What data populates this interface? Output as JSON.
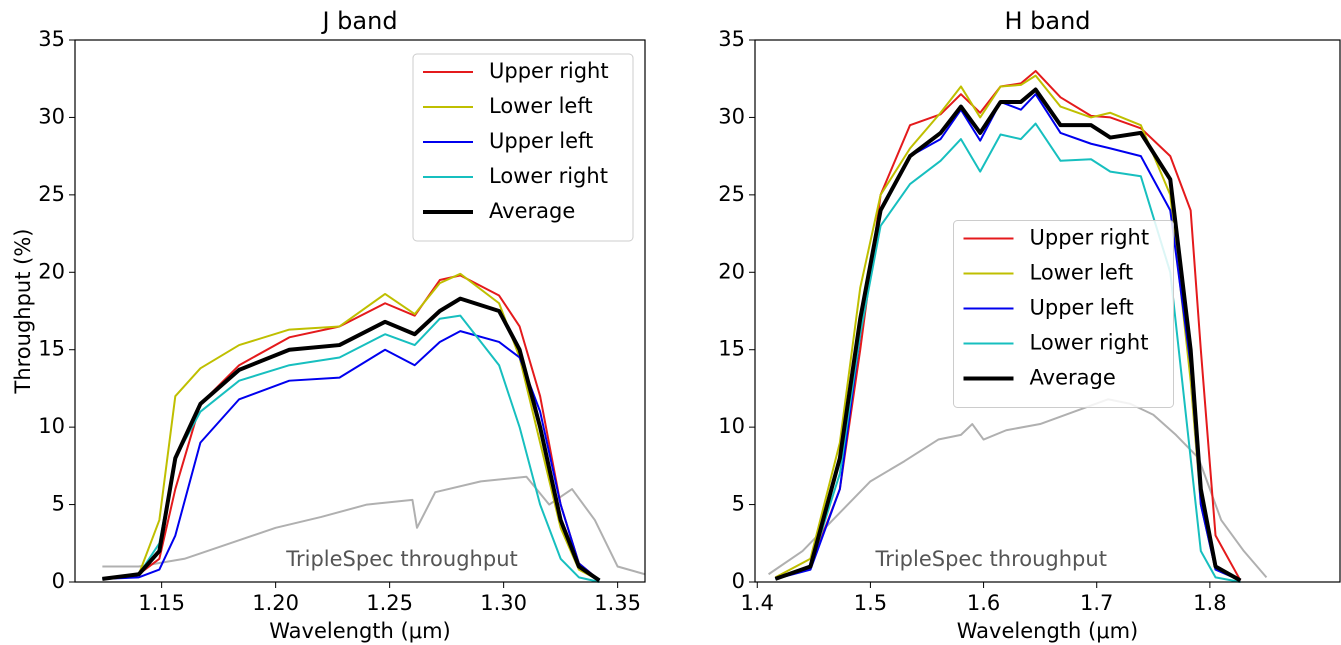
{
  "chart_data": [
    {
      "type": "line",
      "title": "J band",
      "xlabel": "Wavelength (μm)",
      "ylabel": "Throughput (%)",
      "xlim": [
        1.112,
        1.362
      ],
      "ylim": [
        0,
        35
      ],
      "xticks": [
        1.15,
        {
          "value": 1.2,
          "label": "1.20"
        },
        1.25,
        {
          "value": 1.3,
          "label": "1.30"
        },
        1.35
      ],
      "yticks": [
        0,
        5,
        10,
        15,
        20,
        25,
        30,
        35
      ],
      "grid": false,
      "legend": "upper right",
      "x": [
        1.124,
        1.14,
        1.149,
        1.156,
        1.167,
        1.184,
        1.206,
        1.228,
        1.248,
        1.261,
        1.272,
        1.281,
        1.298,
        1.307,
        1.316,
        1.325,
        1.333,
        1.342
      ],
      "series": [
        {
          "name": "Upper right",
          "color": "#e41a1c",
          "width": 2,
          "values": [
            0.2,
            0.5,
            1.5,
            6,
            11.5,
            14,
            15.8,
            16.5,
            18,
            17.2,
            19.5,
            19.8,
            18.5,
            16.5,
            12,
            5,
            1.2,
            0.1
          ]
        },
        {
          "name": "Lower left",
          "color": "#bfbf00",
          "width": 2,
          "values": [
            0.2,
            0.5,
            4,
            12,
            13.8,
            15.3,
            16.3,
            16.5,
            18.6,
            17.3,
            19.3,
            19.9,
            18,
            14.5,
            9,
            3.5,
            0.8,
            0.1
          ]
        },
        {
          "name": "Upper left",
          "color": "#0000ee",
          "width": 2,
          "values": [
            0.2,
            0.3,
            0.8,
            3,
            9,
            11.8,
            13,
            13.2,
            15,
            14,
            15.5,
            16.2,
            15.5,
            14.5,
            11,
            5,
            1.2,
            0.1
          ]
        },
        {
          "name": "Lower right",
          "color": "#17bfbf",
          "width": 2,
          "values": [
            0.2,
            0.5,
            2.5,
            8,
            11,
            13,
            14,
            14.5,
            16,
            15.3,
            17,
            17.2,
            14,
            10,
            5,
            1.5,
            0.3,
            0
          ]
        },
        {
          "name": "Average",
          "color": "#000000",
          "width": 4,
          "values": [
            0.2,
            0.5,
            2,
            8,
            11.5,
            13.7,
            15,
            15.3,
            16.8,
            16,
            17.5,
            18.3,
            17.5,
            15,
            10,
            4,
            1,
            0.1
          ]
        }
      ],
      "reference": {
        "label": "TripleSpec throughput",
        "color": "#b0b0b0",
        "x": [
          1.124,
          1.14,
          1.16,
          1.18,
          1.2,
          1.22,
          1.24,
          1.26,
          1.262,
          1.27,
          1.29,
          1.31,
          1.32,
          1.33,
          1.34,
          1.35,
          1.362
        ],
        "values": [
          1,
          1,
          1.5,
          2.5,
          3.5,
          4.2,
          5,
          5.3,
          3.5,
          5.8,
          6.5,
          6.8,
          5,
          6,
          4,
          1,
          0.5
        ]
      }
    },
    {
      "type": "line",
      "title": "H band",
      "xlabel": "Wavelength (μm)",
      "xlim": [
        1.398,
        1.915
      ],
      "ylim": [
        0,
        35
      ],
      "xticks": [
        1.4,
        1.5,
        1.6,
        1.7,
        1.8
      ],
      "yticks": [
        0,
        5,
        10,
        15,
        20,
        25,
        30,
        35
      ],
      "grid": false,
      "legend": "center",
      "x": [
        1.416,
        1.447,
        1.473,
        1.491,
        1.509,
        1.535,
        1.562,
        1.58,
        1.597,
        1.615,
        1.633,
        1.646,
        1.668,
        1.695,
        1.712,
        1.739,
        1.765,
        1.783,
        1.792,
        1.805,
        1.827
      ],
      "series": [
        {
          "name": "Upper right",
          "color": "#e41a1c",
          "width": 2,
          "values": [
            0.2,
            1,
            6,
            15,
            25,
            29.5,
            30.2,
            31.5,
            30.3,
            32,
            32.2,
            33,
            31.3,
            30.1,
            30,
            29.3,
            27.5,
            24,
            15,
            3,
            0.1
          ]
        },
        {
          "name": "Lower left",
          "color": "#bfbf00",
          "width": 2,
          "values": [
            0.3,
            1.5,
            9,
            19,
            25,
            28,
            30.3,
            32,
            30,
            32,
            32.1,
            32.7,
            30.7,
            30,
            30.3,
            29.5,
            25,
            13,
            5,
            0.8,
            0.1
          ]
        },
        {
          "name": "Upper left",
          "color": "#0000ee",
          "width": 2,
          "values": [
            0.2,
            0.8,
            6,
            16,
            24,
            27.5,
            28.6,
            30.5,
            28.5,
            31,
            30.5,
            31.5,
            29,
            28.3,
            28,
            27.5,
            24,
            14,
            5,
            0.8,
            0.1
          ]
        },
        {
          "name": "Lower right",
          "color": "#17bfbf",
          "width": 2,
          "values": [
            0.2,
            1,
            7,
            16,
            23,
            25.7,
            27.2,
            28.6,
            26.5,
            28.9,
            28.6,
            29.6,
            27.2,
            27.3,
            26.5,
            26.2,
            20,
            8,
            2,
            0.3,
            0
          ]
        },
        {
          "name": "Average",
          "color": "#000000",
          "width": 4,
          "values": [
            0.2,
            1,
            8,
            17,
            24,
            27.5,
            29,
            30.7,
            29,
            31,
            31,
            31.8,
            29.5,
            29.5,
            28.7,
            29,
            26,
            15,
            6,
            1,
            0.1
          ]
        }
      ],
      "reference": {
        "label": "TripleSpec throughput",
        "color": "#b0b0b0",
        "x": [
          1.41,
          1.44,
          1.46,
          1.48,
          1.5,
          1.53,
          1.56,
          1.58,
          1.59,
          1.6,
          1.62,
          1.65,
          1.68,
          1.71,
          1.73,
          1.75,
          1.77,
          1.79,
          1.81,
          1.83,
          1.85
        ],
        "values": [
          0.5,
          2,
          3.5,
          5,
          6.5,
          7.8,
          9.2,
          9.5,
          10.2,
          9.2,
          9.8,
          10.2,
          11,
          11.8,
          11.5,
          10.8,
          9.5,
          8,
          4,
          2,
          0.3
        ]
      }
    }
  ]
}
